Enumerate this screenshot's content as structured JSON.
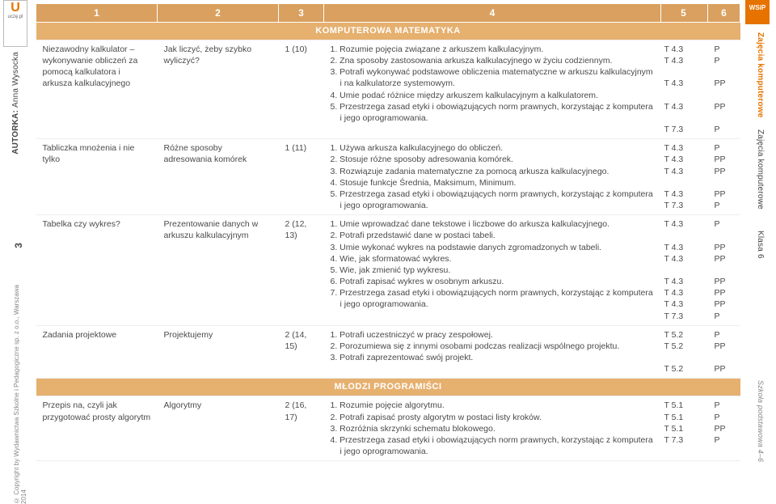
{
  "sidebar_left": {
    "logo_letter": "U",
    "logo_text": "uczę.pl",
    "author_label": "AUTORKA:",
    "author_name": "Anna Wysocka",
    "page": "3",
    "copyright": "© Copyright by Wydawnictwa Szkolne i Pedagogiczne sp. z o.o., Warszawa 2014"
  },
  "sidebar_right": {
    "wsip": "WSiP",
    "line1": "Zajęcia komputerowe",
    "line2": "Zajęcia komputerowe",
    "line3": "Klasa 6",
    "line4": "Szkoła podstawowa 4–6"
  },
  "header": {
    "c1": "1",
    "c2": "2",
    "c3": "3",
    "c4": "4",
    "c5": "5",
    "c6": "6"
  },
  "section1": "KOMPUTEROWA MATEMATYKA",
  "section2": "MŁODZI PROGRAMIŚCI",
  "rows": [
    {
      "c1": "Niezawodny kalkulator – wykonywanie obliczeń za pomocą kalkulatora i arkusza kalkulacyjnego",
      "c2": "Jak liczyć, żeby szybko wyliczyć?",
      "c3": "1 (10)",
      "items": [
        "1.  Rozumie pojęcia związane z arkuszem kalkulacyjnym.",
        "2.  Zna sposoby zastosowania arkusza kalkulacyjnego w życiu codziennym.",
        "3.  Potrafi wykonywać podstawowe obliczenia matematyczne w arkuszu kalkulacyjnym i na kalkulatorze systemowym.",
        "4.  Umie podać różnice między arkuszem kalkulacyjnym a kalkulatorem.",
        "5.  Przestrzega zasad etyki i obowiązujących norm prawnych, korzystając z komputera i jego oprogramowania."
      ],
      "c5": [
        "T 4.3",
        "T 4.3",
        "",
        "T 4.3",
        "",
        "T 4.3",
        "",
        "T 7.3"
      ],
      "c6": [
        "P",
        "P",
        "",
        "PP",
        "",
        "PP",
        "",
        "P"
      ]
    },
    {
      "c1": "Tabliczka mnożenia i nie tylko",
      "c2": "Różne sposoby adresowania komórek",
      "c3": "1 (11)",
      "items": [
        "1.  Używa arkusza kalkulacyjnego do obliczeń.",
        "2.  Stosuje różne sposoby adresowania komórek.",
        "3.  Rozwiązuje zadania matematyczne za pomocą arkusza kalkulacyjnego.",
        "4.  Stosuje funkcje Średnia, Maksimum, Minimum.",
        "5.  Przestrzega zasad etyki i obowiązujących norm prawnych, korzystając z komputera i jego oprogramowania."
      ],
      "c5": [
        "T 4.3",
        "T 4.3",
        "T 4.3",
        "",
        "T 4.3",
        "T 7.3"
      ],
      "c6": [
        "P",
        "PP",
        "PP",
        "",
        "PP",
        "P"
      ]
    },
    {
      "c1": "Tabelka czy wykres?",
      "c2": "Prezentowanie danych w arkuszu kalkulacyjnym",
      "c3": "2 (12, 13)",
      "items": [
        "1.  Umie wprowadzać dane tekstowe i liczbowe do arkusza kalkulacyjnego.",
        "2.  Potrafi przedstawić dane w postaci tabeli.",
        "3.  Umie wykonać wykres na podstawie danych zgromadzonych w tabeli.",
        "4.  Wie, jak sformatować wykres.",
        "5.  Wie, jak zmienić typ wykresu.",
        "6.  Potrafi zapisać wykres w osobnym arkuszu.",
        "7.  Przestrzega zasad etyki i obowiązujących norm prawnych, korzystając z komputera i jego oprogramowania."
      ],
      "c5": [
        "T 4.3",
        "",
        "T 4.3",
        "T 4.3",
        "",
        "T 4.3",
        "T 4.3",
        "T 4.3",
        "T 7.3"
      ],
      "c6": [
        "P",
        "",
        "PP",
        "PP",
        "",
        "PP",
        "PP",
        "PP",
        "P"
      ]
    },
    {
      "c1": "Zadania projektowe",
      "c2": "Projektujemy",
      "c3": "2 (14, 15)",
      "items": [
        "1.  Potrafi uczestniczyć w pracy zespołowej.",
        "2.  Porozumiewa się z innymi osobami podczas realizacji wspólnego projektu.",
        "3.  Potrafi zaprezentować swój projekt."
      ],
      "c5": [
        "T 5.2",
        "T 5.2",
        "",
        "T 5.2"
      ],
      "c6": [
        "P",
        "PP",
        "",
        "PP"
      ]
    },
    {
      "c1": "Przepis na, czyli jak przygotować prosty algorytm",
      "c2": "Algorytmy",
      "c3": "2 (16, 17)",
      "items": [
        "1.  Rozumie pojęcie algorytmu.",
        "2.  Potrafi zapisać prosty algorytm w postaci listy kroków.",
        "3.  Rozróżnia skrzynki schematu blokowego.",
        "4.  Przestrzega zasad etyki i obowiązujących norm prawnych, korzystając z komputera i jego oprogramowania."
      ],
      "c5": [
        "T 5.1",
        "T 5.1",
        "T 5.1",
        "T 7.3"
      ],
      "c6": [
        "P",
        "P",
        "PP",
        "P"
      ]
    }
  ]
}
